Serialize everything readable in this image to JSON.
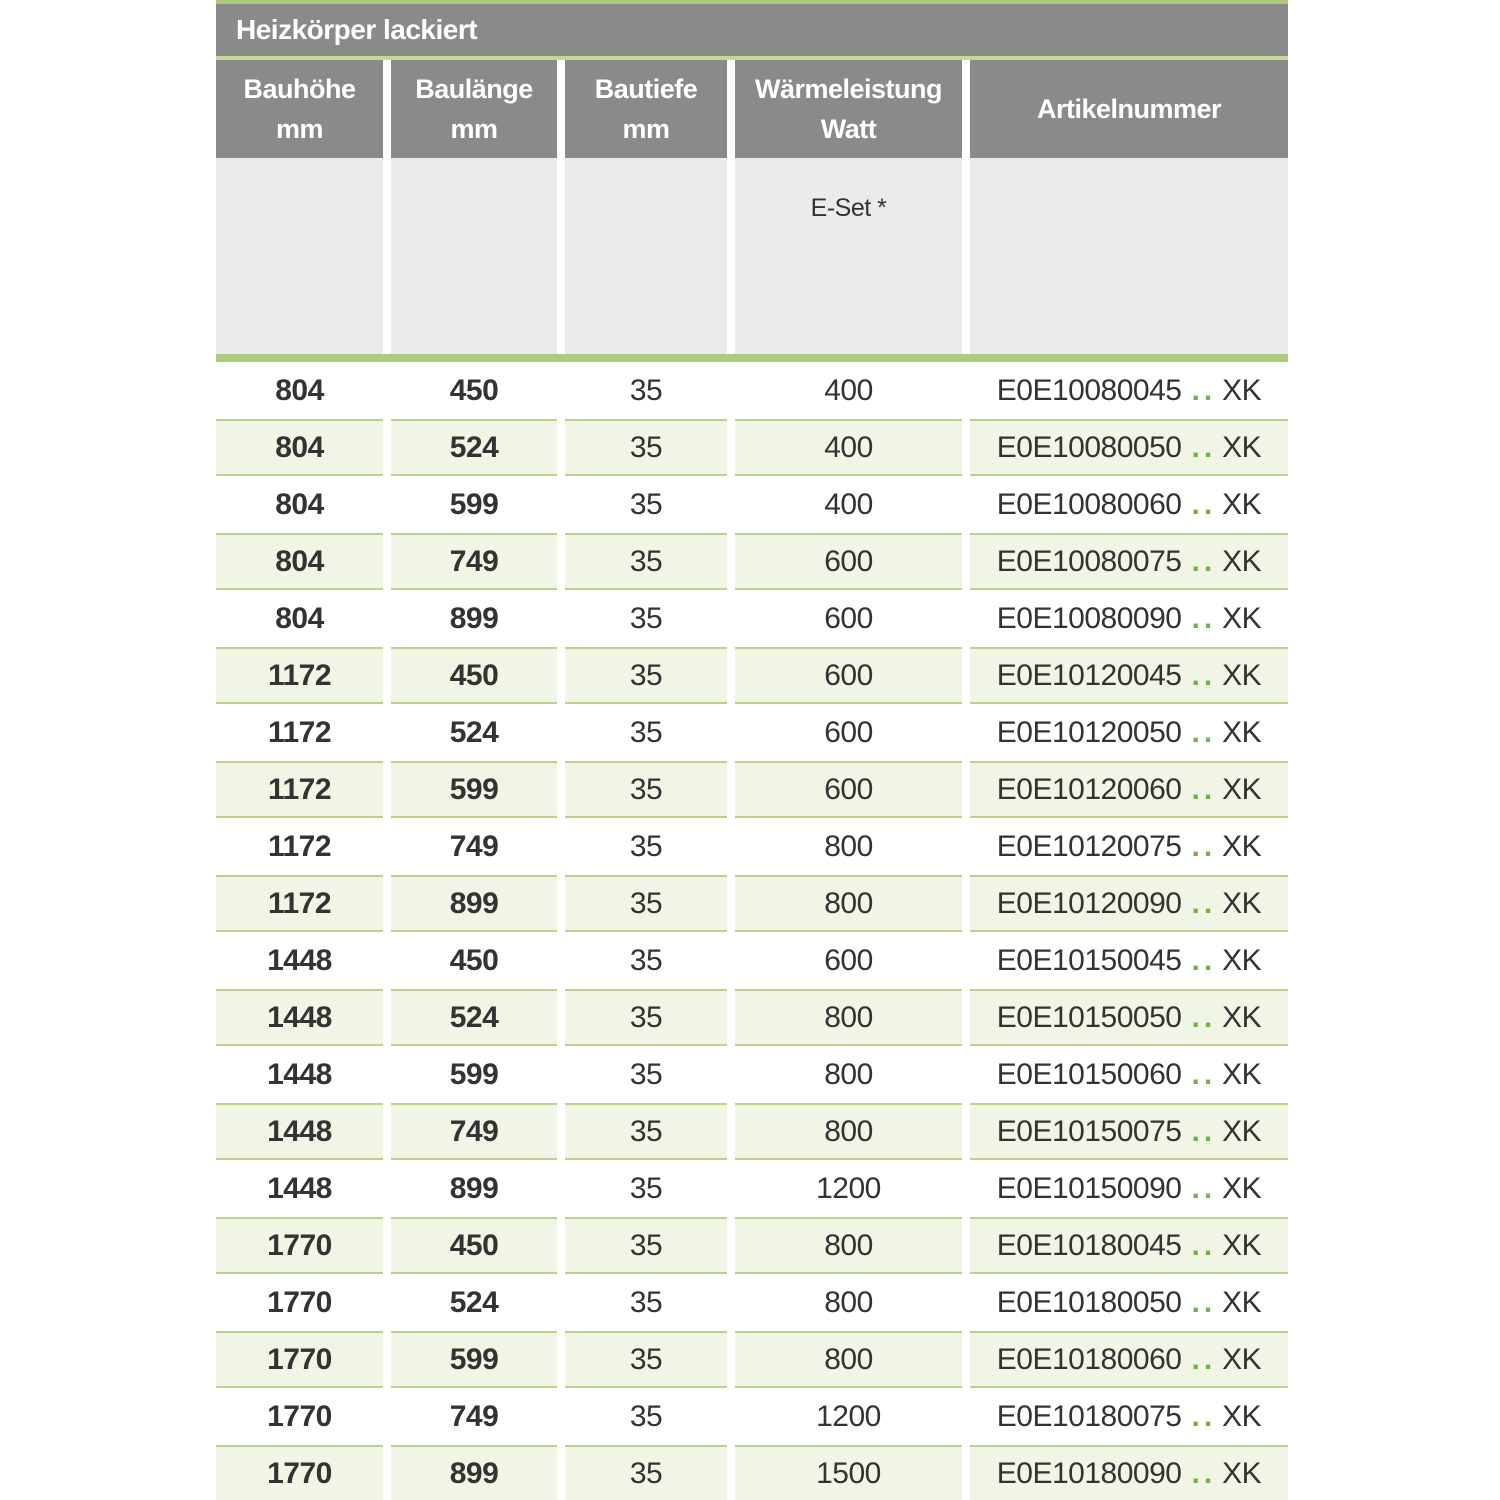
{
  "table": {
    "title": "Heizkörper lackiert",
    "columns": [
      {
        "label": "Bauhöhe",
        "unit": "mm"
      },
      {
        "label": "Baulänge",
        "unit": "mm"
      },
      {
        "label": "Bautiefe",
        "unit": "mm"
      },
      {
        "label": "Wärmeleistung",
        "unit": "Watt"
      },
      {
        "label": "Artikelnummer",
        "unit": ""
      }
    ],
    "subheader": {
      "eset_label": "E-Set *"
    },
    "article_separator": "..",
    "rows": [
      {
        "hoehe": "804",
        "laenge": "450",
        "tiefe": "35",
        "watt": "400",
        "code": "E0E10080045",
        "suffix": "XK"
      },
      {
        "hoehe": "804",
        "laenge": "524",
        "tiefe": "35",
        "watt": "400",
        "code": "E0E10080050",
        "suffix": "XK"
      },
      {
        "hoehe": "804",
        "laenge": "599",
        "tiefe": "35",
        "watt": "400",
        "code": "E0E10080060",
        "suffix": "XK"
      },
      {
        "hoehe": "804",
        "laenge": "749",
        "tiefe": "35",
        "watt": "600",
        "code": "E0E10080075",
        "suffix": "XK"
      },
      {
        "hoehe": "804",
        "laenge": "899",
        "tiefe": "35",
        "watt": "600",
        "code": "E0E10080090",
        "suffix": "XK"
      },
      {
        "hoehe": "1172",
        "laenge": "450",
        "tiefe": "35",
        "watt": "600",
        "code": "E0E10120045",
        "suffix": "XK"
      },
      {
        "hoehe": "1172",
        "laenge": "524",
        "tiefe": "35",
        "watt": "600",
        "code": "E0E10120050",
        "suffix": "XK"
      },
      {
        "hoehe": "1172",
        "laenge": "599",
        "tiefe": "35",
        "watt": "600",
        "code": "E0E10120060",
        "suffix": "XK"
      },
      {
        "hoehe": "1172",
        "laenge": "749",
        "tiefe": "35",
        "watt": "800",
        "code": "E0E10120075",
        "suffix": "XK"
      },
      {
        "hoehe": "1172",
        "laenge": "899",
        "tiefe": "35",
        "watt": "800",
        "code": "E0E10120090",
        "suffix": "XK"
      },
      {
        "hoehe": "1448",
        "laenge": "450",
        "tiefe": "35",
        "watt": "600",
        "code": "E0E10150045",
        "suffix": "XK"
      },
      {
        "hoehe": "1448",
        "laenge": "524",
        "tiefe": "35",
        "watt": "800",
        "code": "E0E10150050",
        "suffix": "XK"
      },
      {
        "hoehe": "1448",
        "laenge": "599",
        "tiefe": "35",
        "watt": "800",
        "code": "E0E10150060",
        "suffix": "XK"
      },
      {
        "hoehe": "1448",
        "laenge": "749",
        "tiefe": "35",
        "watt": "800",
        "code": "E0E10150075",
        "suffix": "XK"
      },
      {
        "hoehe": "1448",
        "laenge": "899",
        "tiefe": "35",
        "watt": "1200",
        "code": "E0E10150090",
        "suffix": "XK"
      },
      {
        "hoehe": "1770",
        "laenge": "450",
        "tiefe": "35",
        "watt": "800",
        "code": "E0E10180045",
        "suffix": "XK"
      },
      {
        "hoehe": "1770",
        "laenge": "524",
        "tiefe": "35",
        "watt": "800",
        "code": "E0E10180050",
        "suffix": "XK"
      },
      {
        "hoehe": "1770",
        "laenge": "599",
        "tiefe": "35",
        "watt": "800",
        "code": "E0E10180060",
        "suffix": "XK"
      },
      {
        "hoehe": "1770",
        "laenge": "749",
        "tiefe": "35",
        "watt": "1200",
        "code": "E0E10180075",
        "suffix": "XK"
      },
      {
        "hoehe": "1770",
        "laenge": "899",
        "tiefe": "35",
        "watt": "1500",
        "code": "E0E10180090",
        "suffix": "XK"
      }
    ],
    "colors": {
      "header_gray": "#8a8a8a",
      "subheader_gray": "#ebebeb",
      "accent_green": "#aecb7f",
      "divider_green": "#c2d79e",
      "row_green_bg": "#f0f5e6",
      "row_green_border": "#bad28e",
      "dots_green": "#76b043",
      "text_dark": "#333333"
    }
  }
}
